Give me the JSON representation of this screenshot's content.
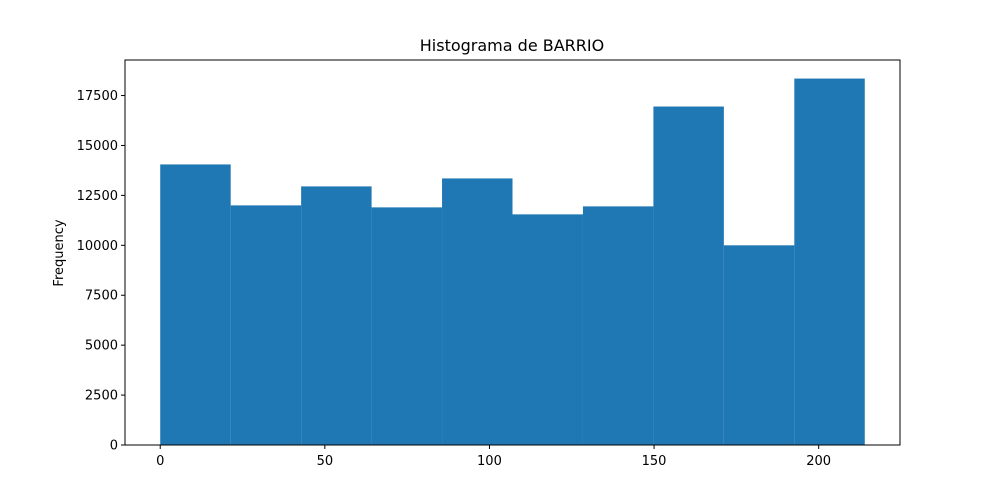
{
  "chart_data": {
    "type": "bar",
    "title": "Histograma de BARRIO",
    "xlabel": "",
    "ylabel": "Frequency",
    "bins": [
      {
        "start": 0,
        "end": 21.4,
        "value": 14050
      },
      {
        "start": 21.4,
        "end": 42.8,
        "value": 12000
      },
      {
        "start": 42.8,
        "end": 64.2,
        "value": 12950
      },
      {
        "start": 64.2,
        "end": 85.6,
        "value": 11900
      },
      {
        "start": 85.6,
        "end": 107.0,
        "value": 13350
      },
      {
        "start": 107.0,
        "end": 128.4,
        "value": 11550
      },
      {
        "start": 128.4,
        "end": 149.8,
        "value": 11950
      },
      {
        "start": 149.8,
        "end": 171.2,
        "value": 16950
      },
      {
        "start": 171.2,
        "end": 192.6,
        "value": 10000
      },
      {
        "start": 192.6,
        "end": 214.0,
        "value": 18350
      }
    ],
    "xlim": [
      -10.7,
      224.7
    ],
    "ylim": [
      0,
      19280
    ],
    "xticks": [
      0,
      50,
      100,
      150,
      200
    ],
    "yticks": [
      0,
      2500,
      5000,
      7500,
      10000,
      12500,
      15000,
      17500
    ],
    "grid": false,
    "bar_color": "#1f77b4"
  }
}
